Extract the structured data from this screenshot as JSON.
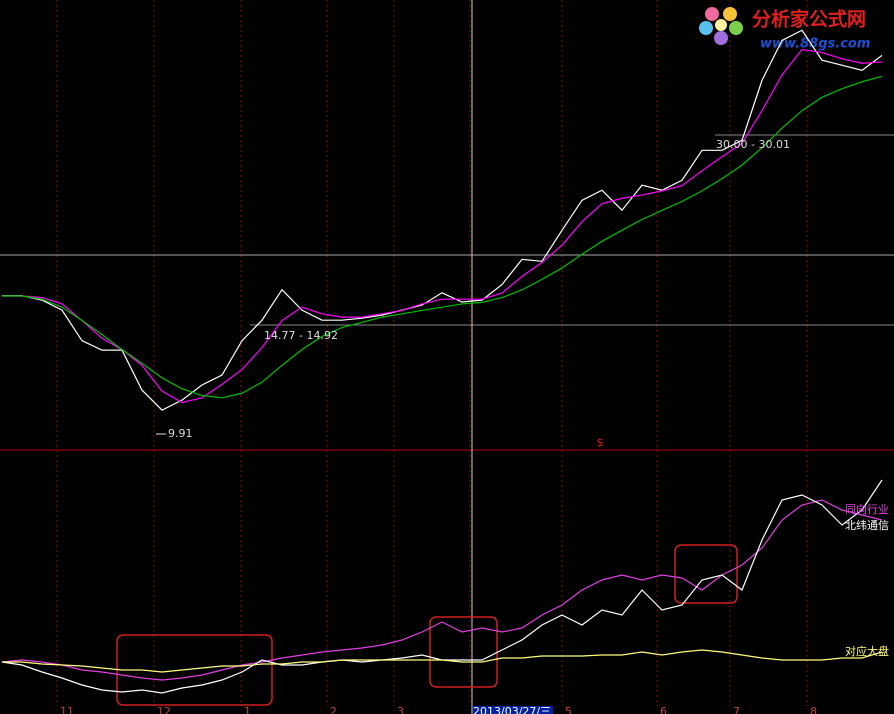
{
  "watermark": {
    "title": "分析家公式网",
    "url": "www.88gs.com"
  },
  "chart_data": [
    {
      "type": "line",
      "log_scale": true,
      "ylim": [
        9.25,
        52
      ],
      "series": [
        {
          "color": "#ffffff",
          "values": [
            16.72,
            16.72,
            16.44,
            15.82,
            14.07,
            13.57,
            13.57,
            11.64,
            10.78,
            11.2,
            11.87,
            12.33,
            14.07,
            15.22,
            17.11,
            15.82,
            15.22,
            15.22,
            15.34,
            15.52,
            15.82,
            16.13,
            16.91,
            16.32,
            16.44,
            17.45,
            19.22,
            19.08,
            21.49,
            24.11,
            25.06,
            23.21,
            25.55,
            25.06,
            26.04,
            29.21,
            29.21,
            30.35,
            38.2,
            44.53,
            46.3,
            41.28,
            40.49,
            39.7,
            42.05
          ]
        },
        {
          "color": "#ff00ff",
          "values": [
            16.7,
            16.7,
            16.6,
            16.2,
            15.2,
            14.2,
            13.6,
            12.8,
            11.6,
            11.1,
            11.3,
            11.9,
            12.6,
            13.7,
            15.2,
            16.0,
            15.6,
            15.4,
            15.4,
            15.6,
            15.8,
            16.2,
            16.5,
            16.5,
            16.5,
            16.9,
            18.0,
            19.0,
            20.3,
            22.2,
            23.8,
            24.3,
            24.6,
            25.0,
            25.5,
            27.0,
            28.5,
            30.0,
            34.0,
            39.0,
            43.0,
            42.5,
            41.5,
            40.8,
            41.0
          ]
        },
        {
          "color": "#00c000",
          "values": [
            16.7,
            16.7,
            16.5,
            16.0,
            15.2,
            14.4,
            13.6,
            12.9,
            12.2,
            11.7,
            11.4,
            11.3,
            11.5,
            12.0,
            12.8,
            13.6,
            14.3,
            14.8,
            15.1,
            15.4,
            15.6,
            15.8,
            16.0,
            16.2,
            16.3,
            16.6,
            17.1,
            17.8,
            18.6,
            19.6,
            20.6,
            21.5,
            22.4,
            23.2,
            24.0,
            25.0,
            26.2,
            27.6,
            29.5,
            31.8,
            34.0,
            35.8,
            37.0,
            38.0,
            38.8
          ]
        }
      ],
      "annotations": [
        "9.91",
        "14.77 - 14.92",
        "30.00 - 30.01"
      ],
      "marker": "$"
    },
    {
      "type": "line",
      "ylim": [
        0,
        262
      ],
      "x_labels": [
        "11",
        "12",
        "1",
        "2",
        "3",
        "2013/03/27/三",
        "5",
        "6",
        "7",
        "8"
      ],
      "series": [
        {
          "name": "同向行业",
          "color": "#e040e0",
          "values": [
            52,
            54,
            52,
            49,
            44,
            42,
            39,
            36,
            34,
            36,
            39,
            44,
            49,
            52,
            56,
            59,
            62,
            64,
            66,
            69,
            74,
            82,
            92,
            82,
            86,
            82,
            86,
            99,
            109,
            124,
            134,
            139,
            134,
            139,
            136,
            124,
            139,
            149,
            166,
            194,
            209,
            214,
            204,
            199,
            194
          ]
        },
        {
          "name": "北纬通信",
          "color": "#ffffff",
          "values": [
            52,
            49,
            42,
            36,
            29,
            24,
            22,
            24,
            21,
            26,
            29,
            34,
            42,
            54,
            49,
            49,
            52,
            54,
            52,
            54,
            56,
            59,
            54,
            54,
            54,
            64,
            74,
            89,
            99,
            89,
            104,
            99,
            124,
            104,
            109,
            134,
            139,
            124,
            174,
            214,
            219,
            209,
            189,
            204,
            234
          ]
        },
        {
          "name": "对应大盘",
          "color": "#ffff80",
          "values": [
            52,
            52,
            50,
            49,
            48,
            46,
            44,
            44,
            42,
            44,
            46,
            48,
            48,
            50,
            50,
            52,
            52,
            54,
            54,
            54,
            54,
            54,
            54,
            52,
            52,
            56,
            56,
            58,
            58,
            58,
            59,
            59,
            62,
            59,
            62,
            64,
            62,
            59,
            56,
            54,
            54,
            54,
            56,
            56,
            62
          ]
        }
      ]
    }
  ]
}
